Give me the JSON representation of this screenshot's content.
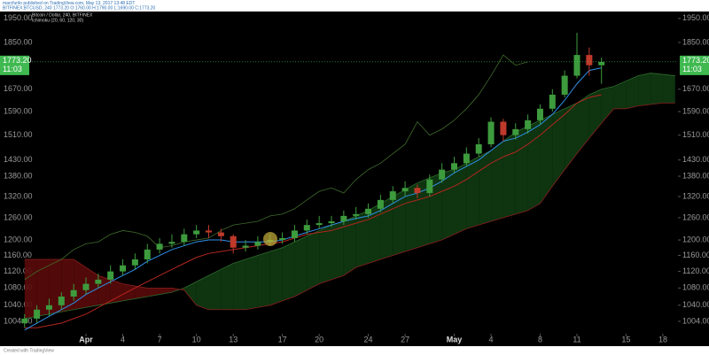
{
  "chart_data": {
    "type": "candlestick",
    "publisher_line": "marcfurilo published on TradingView.com, May 13, 2017 13:48 EDT",
    "symbol_line": "BITFINEX:BTCUSD, 240  1773.20  O:1760.00 H:1790.00 L:1690.00 C:1773.20",
    "title": "Bitcoin / Dollar, 240, BITFINEX",
    "indicator": "Ichimoku (20, 60, 120, 30)",
    "footer": "Created with TradingView",
    "log_scale": true,
    "grid": false,
    "last_price": {
      "value": 1773.2,
      "label": "1773.20"
    },
    "countdown": "11:03",
    "last_price_color": "#3fb950",
    "categories": [
      null,
      null,
      null,
      null,
      null,
      "Apr",
      null,
      null,
      "4",
      null,
      null,
      "7",
      null,
      null,
      "10",
      null,
      null,
      "13",
      null,
      null,
      null,
      "17",
      null,
      null,
      "20",
      null,
      null,
      null,
      "24",
      null,
      null,
      "27",
      null,
      null,
      null,
      "May",
      null,
      null,
      "4",
      null,
      null,
      null,
      "8",
      null,
      null,
      "11",
      null,
      null,
      null,
      "15",
      null,
      null,
      "18",
      null
    ],
    "ylim": [
      977,
      1980
    ],
    "yticks": [
      {
        "value": 1004,
        "label": "1004.00"
      },
      {
        "value": 1040,
        "label": "1040.00"
      },
      {
        "value": 1080,
        "label": "1080.00"
      },
      {
        "value": 1120,
        "label": "1120.00"
      },
      {
        "value": 1160,
        "label": "1160.00"
      },
      {
        "value": 1200,
        "label": "1200.00"
      },
      {
        "value": 1260,
        "label": "1260.00"
      },
      {
        "value": 1320,
        "label": "1320.00"
      },
      {
        "value": 1380,
        "label": "1380.00"
      },
      {
        "value": 1430,
        "label": "1430.00"
      },
      {
        "value": 1510,
        "label": "1510.00"
      },
      {
        "value": 1590,
        "label": "1590.00"
      },
      {
        "value": 1670,
        "label": "1670.00"
      },
      {
        "value": 1850,
        "label": "1850.00"
      },
      {
        "value": 1950,
        "label": "1950.00"
      }
    ],
    "up_color": "#3d9b3d",
    "down_color": "#c0392b",
    "candles": {
      "open": [
        1000,
        1010,
        1030,
        1040,
        1060,
        1075,
        1090,
        1100,
        1120,
        1135,
        1150,
        1175,
        1190,
        1195,
        1215,
        1225,
        1220,
        1210,
        1180,
        1185,
        1195,
        1200,
        1205,
        1225,
        1240,
        1245,
        1250,
        1265,
        1270,
        1285,
        1310,
        1335,
        1345,
        1330,
        1370,
        1400,
        1420,
        1450,
        1480,
        1555,
        1510,
        1530,
        1560,
        1600,
        1650,
        1720,
        1800,
        1760
      ],
      "high": [
        1020,
        1040,
        1055,
        1070,
        1090,
        1105,
        1115,
        1135,
        1150,
        1165,
        1190,
        1205,
        1215,
        1230,
        1240,
        1240,
        1230,
        1215,
        1200,
        1210,
        1215,
        1220,
        1240,
        1255,
        1265,
        1265,
        1280,
        1290,
        1300,
        1325,
        1350,
        1365,
        1355,
        1385,
        1420,
        1440,
        1470,
        1500,
        1570,
        1565,
        1550,
        1580,
        1615,
        1670,
        1740,
        1890,
        1830,
        1790
      ],
      "low": [
        990,
        1000,
        1015,
        1030,
        1050,
        1065,
        1080,
        1090,
        1110,
        1125,
        1140,
        1165,
        1180,
        1185,
        1205,
        1205,
        1195,
        1165,
        1170,
        1175,
        1185,
        1190,
        1195,
        1215,
        1230,
        1235,
        1240,
        1255,
        1260,
        1275,
        1300,
        1320,
        1315,
        1320,
        1360,
        1390,
        1410,
        1440,
        1470,
        1490,
        1495,
        1515,
        1545,
        1590,
        1640,
        1710,
        1720,
        1690
      ],
      "close": [
        1010,
        1030,
        1040,
        1060,
        1075,
        1090,
        1100,
        1120,
        1135,
        1150,
        1175,
        1190,
        1195,
        1215,
        1225,
        1220,
        1210,
        1180,
        1185,
        1195,
        1200,
        1205,
        1225,
        1240,
        1245,
        1250,
        1265,
        1270,
        1285,
        1310,
        1335,
        1345,
        1330,
        1370,
        1400,
        1420,
        1450,
        1480,
        1555,
        1510,
        1530,
        1560,
        1600,
        1650,
        1720,
        1800,
        1760,
        1773.2
      ]
    },
    "conversion_line": {
      "color": "#2f8fe8",
      "values": [
        985,
        1000,
        1015,
        1030,
        1045,
        1065,
        1080,
        1095,
        1110,
        1125,
        1145,
        1160,
        1175,
        1185,
        1195,
        1200,
        1200,
        1195,
        1195,
        1195,
        1195,
        1200,
        1210,
        1220,
        1230,
        1240,
        1250,
        1258,
        1265,
        1280,
        1300,
        1320,
        1330,
        1345,
        1365,
        1390,
        1410,
        1430,
        1460,
        1490,
        1500,
        1520,
        1545,
        1580,
        1630,
        1690,
        1740,
        1750,
        null,
        null,
        null,
        null,
        null,
        null
      ]
    },
    "base_line": {
      "color": "#b3261e",
      "values": [
        990,
        990,
        995,
        1000,
        1010,
        1020,
        1035,
        1050,
        1065,
        1080,
        1095,
        1110,
        1125,
        1140,
        1155,
        1165,
        1170,
        1175,
        1180,
        1185,
        1190,
        1195,
        1205,
        1215,
        1220,
        1225,
        1235,
        1245,
        1255,
        1270,
        1285,
        1300,
        1310,
        1320,
        1335,
        1350,
        1370,
        1395,
        1420,
        1440,
        1455,
        1480,
        1510,
        1545,
        1580,
        1620,
        1640,
        1650,
        null,
        null,
        null,
        null,
        null,
        null
      ]
    },
    "lagging_span": {
      "color": "#3f6b2a",
      "values": [
        1100,
        1120,
        1135,
        1150,
        1175,
        1190,
        1195,
        1215,
        1225,
        1220,
        1210,
        1180,
        1185,
        1195,
        1200,
        1205,
        1225,
        1240,
        1245,
        1250,
        1265,
        1270,
        1285,
        1310,
        1335,
        1345,
        1330,
        1370,
        1400,
        1420,
        1450,
        1480,
        1555,
        1510,
        1530,
        1560,
        1600,
        1650,
        1720,
        1800,
        1760,
        1773.2,
        null,
        null,
        null,
        null,
        null,
        null,
        null,
        null,
        null,
        null,
        null,
        null
      ]
    },
    "span_a": {
      "color": "#2d6b2d",
      "values": [
        1010,
        1015,
        1020,
        1025,
        1030,
        1035,
        1040,
        1045,
        1050,
        1055,
        1060,
        1065,
        1070,
        1080,
        1095,
        1110,
        1125,
        1140,
        1150,
        1160,
        1170,
        1180,
        1195,
        1210,
        1225,
        1240,
        1250,
        1265,
        1280,
        1300,
        1320,
        1340,
        1360,
        1375,
        1390,
        1400,
        1420,
        1440,
        1460,
        1490,
        1520,
        1540,
        1560,
        1580,
        1600,
        1620,
        1650,
        1670,
        1680,
        1700,
        1720,
        1730,
        1725,
        1720
      ]
    },
    "span_b": {
      "color": "#8a1f1f",
      "values": [
        1150,
        1150,
        1150,
        1150,
        1150,
        1130,
        1110,
        1100,
        1090,
        1085,
        1080,
        1080,
        1080,
        1075,
        1040,
        1030,
        1030,
        1030,
        1030,
        1035,
        1040,
        1050,
        1060,
        1075,
        1090,
        1100,
        1110,
        1130,
        1140,
        1150,
        1160,
        1170,
        1180,
        1190,
        1200,
        1215,
        1230,
        1240,
        1250,
        1260,
        1270,
        1280,
        1300,
        1350,
        1400,
        1450,
        1500,
        1550,
        1600,
        1600,
        1610,
        1615,
        1620,
        1620
      ]
    },
    "cloud_up_color": "#0f3a12",
    "cloud_down_color": "#5a0a0a"
  }
}
